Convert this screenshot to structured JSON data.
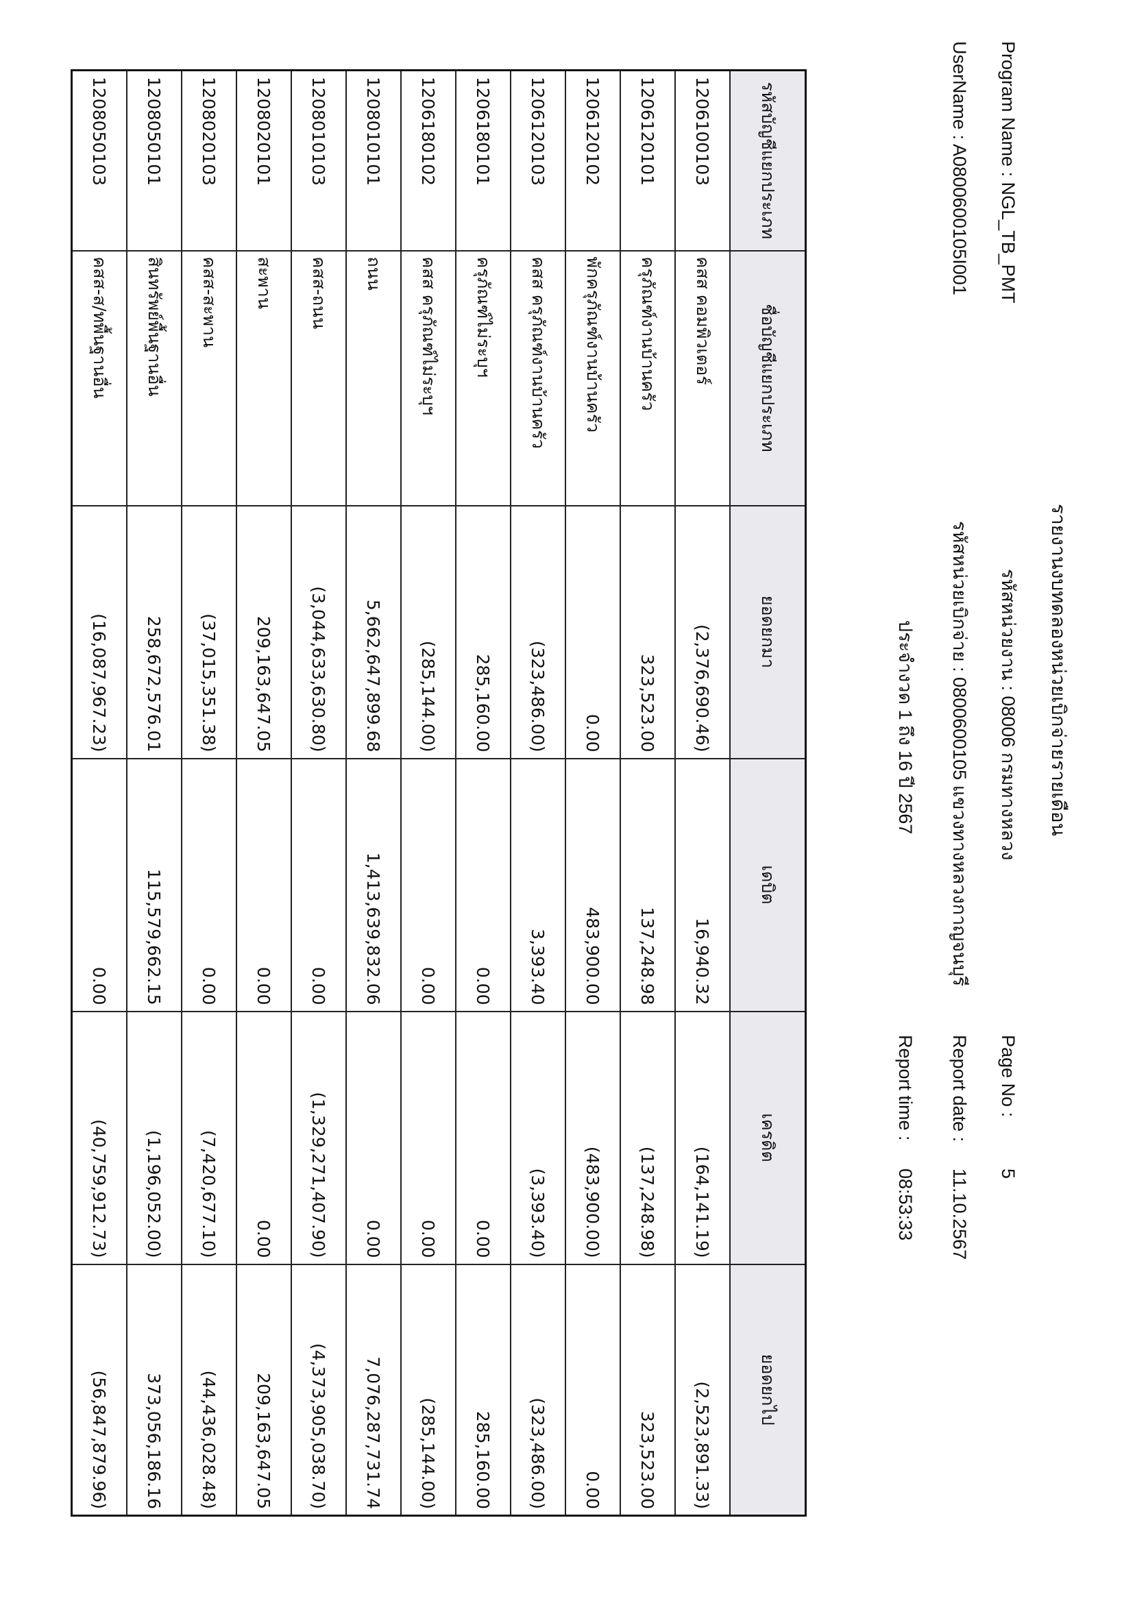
{
  "header": {
    "title": "รายงานงบทดลองหน่วยเบิกจ่ายรายเดือน",
    "agency": "รหัสหน่วยงาน : 08006 กรมทางหลวง",
    "disbursement_unit": "รหัสหน่วยเบิกจ่าย : 0800600105 แขวงทางหลวงกาญจนบุรี",
    "period": "ประจำงวด 1 ถึง 16 ปี 2567",
    "program_name": "Program Name : NGL_TB_PMT",
    "username": "UserName : A0800600105I001",
    "page_no_label": "Page No :",
    "page_no": "5",
    "report_date_label": "Report date :",
    "report_date": "11.10.2567",
    "report_time_label": "Report time :",
    "report_time": "08:53:33"
  },
  "table": {
    "columns": [
      "รหัสบัญชีแยกประเภท",
      "ชื่อบัญชีแยกประเภท",
      "ยอดยกมา",
      "เดบิต",
      "เครดิต",
      "ยอดยกไป"
    ],
    "rows": [
      [
        "1206100103",
        "คสส คอมพิวเตอร์",
        "(2,376,690.46)",
        "16,940.32",
        "(164,141.19)",
        "(2,523,891.33)"
      ],
      [
        "1206120101",
        "ครุภัณฑ์งานบ้านครัว",
        "323,523.00",
        "137,248.98",
        "(137,248.98)",
        "323,523.00"
      ],
      [
        "1206120102",
        "พักครุภัณฑ์งานบ้านครัว",
        "0.00",
        "483,900.00",
        "(483,900.00)",
        "0.00"
      ],
      [
        "1206120103",
        "คสส ครุภัณฑ์งานบ้านครัว",
        "(323,486.00)",
        "3,393.40",
        "(3,393.40)",
        "(323,486.00)"
      ],
      [
        "1206180101",
        "ครุภัณฑ์ไม่ระบุฯ",
        "285,160.00",
        "0.00",
        "0.00",
        "285,160.00"
      ],
      [
        "1206180102",
        "คสส ครุภัณฑ์ไม่ระบุฯ",
        "(285,144.00)",
        "0.00",
        "0.00",
        "(285,144.00)"
      ],
      [
        "1208010101",
        "ถนน",
        "5,662,647,899.68",
        "1,413,639,832.06",
        "0.00",
        "7,076,287,731.74"
      ],
      [
        "1208010103",
        "คสส-ถนน",
        "(3,044,633,630.80)",
        "0.00",
        "(1,329,271,407.90)",
        "(4,373,905,038.70)"
      ],
      [
        "1208020101",
        "สะพาน",
        "209,163,647.05",
        "0.00",
        "0.00",
        "209,163,647.05"
      ],
      [
        "1208020103",
        "คสส-สะพาน",
        "(37,015,351.38)",
        "0.00",
        "(7,420,677.10)",
        "(44,436,028.48)"
      ],
      [
        "1208050101",
        "สินทรัพย์พื้นฐานอื่น",
        "258,672,576.01",
        "115,579,662.15",
        "(1,196,052.00)",
        "373,056,186.16"
      ],
      [
        "1208050103",
        "คสส-ส/ทพื้นฐานอื่น",
        "(16,087,967.23)",
        "0.00",
        "(40,759,912.73)",
        "(56,847,879.96)"
      ]
    ]
  }
}
